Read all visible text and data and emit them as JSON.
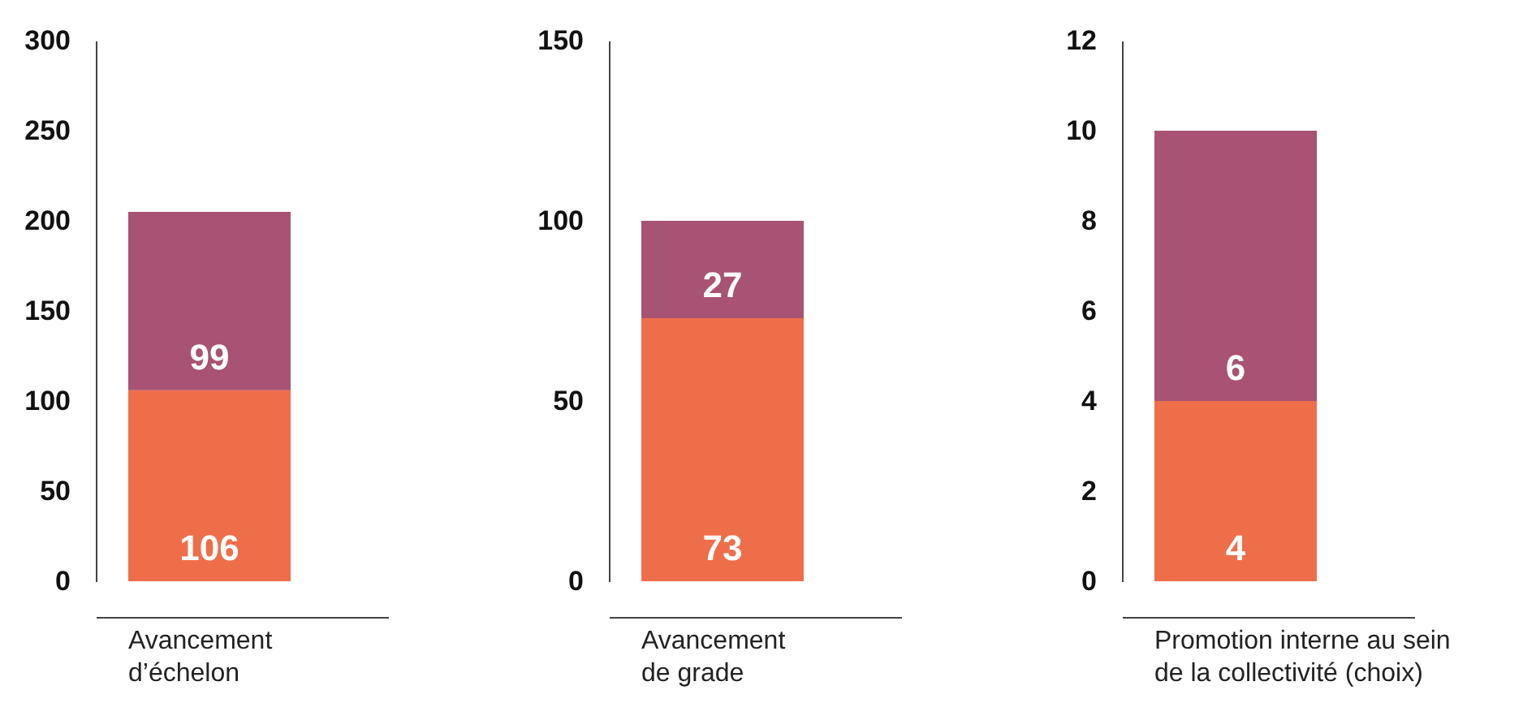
{
  "chart_data": [
    {
      "type": "bar",
      "stacked": true,
      "categories": [
        "Avancement d’échelon"
      ],
      "series": [
        {
          "color": "#ef6e4a",
          "values": [
            106
          ]
        },
        {
          "color": "#a85274",
          "values": [
            99
          ]
        }
      ],
      "ylim": [
        0,
        300
      ],
      "yticks": [
        0,
        50,
        100,
        150,
        200,
        250,
        300
      ],
      "data_labels": true,
      "grid": false
    },
    {
      "type": "bar",
      "stacked": true,
      "categories": [
        "Avancement de grade"
      ],
      "series": [
        {
          "color": "#ef6e4a",
          "values": [
            73
          ]
        },
        {
          "color": "#a85274",
          "values": [
            27
          ]
        }
      ],
      "ylim": [
        0,
        150
      ],
      "yticks": [
        0,
        50,
        100,
        150
      ],
      "data_labels": true,
      "grid": false
    },
    {
      "type": "bar",
      "stacked": true,
      "categories": [
        "Promotion interne au sein de la collectivité (choix)"
      ],
      "series": [
        {
          "color": "#ef6e4a",
          "values": [
            4
          ]
        },
        {
          "color": "#a85274",
          "values": [
            6
          ]
        }
      ],
      "ylim": [
        0,
        12
      ],
      "yticks": [
        0,
        2,
        4,
        6,
        8,
        10,
        12
      ],
      "data_labels": true,
      "grid": false
    }
  ]
}
